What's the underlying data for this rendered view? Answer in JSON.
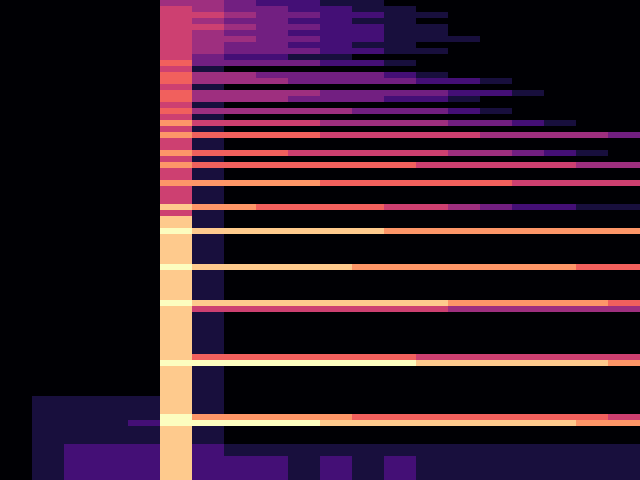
{
  "chart_data": {
    "type": "heatmap",
    "color": "magma",
    "tick_labels": false,
    "cells": [
      [
        0,
        0,
        0,
        0,
        0,
        4,
        4,
        3,
        2,
        2,
        1,
        1,
        0,
        0,
        0,
        0,
        0,
        0,
        0,
        0
      ],
      [
        0,
        0,
        0,
        0,
        0,
        5,
        4,
        3,
        3,
        2,
        2,
        1,
        1,
        0,
        0,
        0,
        0,
        0,
        0,
        0
      ],
      [
        0,
        0,
        0,
        0,
        0,
        5,
        5,
        4,
        3,
        3,
        2,
        2,
        1,
        1,
        0,
        0,
        0,
        0,
        0,
        0
      ],
      [
        0,
        0,
        0,
        0,
        0,
        5,
        4,
        3,
        3,
        2,
        2,
        1,
        1,
        0,
        0,
        0,
        0,
        0,
        0,
        0
      ],
      [
        0,
        0,
        0,
        0,
        0,
        5,
        5,
        4,
        3,
        3,
        2,
        2,
        1,
        1,
        0,
        0,
        0,
        0,
        0,
        0
      ],
      [
        0,
        0,
        0,
        0,
        0,
        5,
        4,
        3,
        3,
        2,
        2,
        2,
        1,
        1,
        0,
        0,
        0,
        0,
        0,
        0
      ],
      [
        0,
        0,
        0,
        0,
        0,
        5,
        4,
        4,
        3,
        3,
        2,
        2,
        1,
        1,
        1,
        0,
        0,
        0,
        0,
        0
      ],
      [
        0,
        0,
        0,
        0,
        0,
        5,
        4,
        3,
        3,
        2,
        2,
        1,
        1,
        0,
        0,
        0,
        0,
        0,
        0,
        0
      ],
      [
        0,
        0,
        0,
        0,
        0,
        5,
        4,
        3,
        3,
        3,
        2,
        2,
        1,
        1,
        0,
        0,
        0,
        0,
        0,
        0
      ],
      [
        0,
        0,
        0,
        0,
        0,
        5,
        3,
        2,
        2,
        1,
        1,
        0,
        0,
        0,
        0,
        0,
        0,
        0,
        0,
        0
      ],
      [
        0,
        0,
        0,
        0,
        0,
        6,
        3,
        3,
        3,
        3,
        2,
        2,
        1,
        0,
        0,
        0,
        0,
        0,
        0,
        0
      ],
      [
        0,
        0,
        0,
        0,
        0,
        5,
        1,
        0,
        0,
        0,
        0,
        0,
        0,
        0,
        0,
        0,
        0,
        0,
        0,
        0
      ],
      [
        0,
        0,
        0,
        0,
        0,
        6,
        4,
        4,
        3,
        3,
        3,
        3,
        2,
        1,
        0,
        0,
        0,
        0,
        0,
        0
      ],
      [
        0,
        0,
        0,
        0,
        0,
        6,
        4,
        4,
        4,
        3,
        3,
        3,
        3,
        2,
        2,
        1,
        0,
        0,
        0,
        0
      ],
      [
        0,
        0,
        0,
        0,
        0,
        5,
        1,
        0,
        0,
        0,
        0,
        0,
        0,
        0,
        0,
        0,
        0,
        0,
        0,
        0
      ],
      [
        0,
        0,
        0,
        0,
        0,
        6,
        4,
        4,
        4,
        4,
        3,
        3,
        3,
        3,
        2,
        2,
        1,
        0,
        0,
        0
      ],
      [
        0,
        0,
        0,
        0,
        0,
        6,
        4,
        4,
        4,
        3,
        3,
        3,
        2,
        2,
        1,
        0,
        0,
        0,
        0,
        0
      ],
      [
        0,
        0,
        0,
        0,
        0,
        5,
        1,
        0,
        0,
        0,
        0,
        0,
        0,
        0,
        0,
        0,
        0,
        0,
        0,
        0
      ],
      [
        0,
        0,
        0,
        0,
        0,
        6,
        4,
        4,
        4,
        4,
        4,
        3,
        3,
        3,
        2,
        1,
        0,
        0,
        0,
        0
      ],
      [
        0,
        0,
        0,
        0,
        0,
        5,
        1,
        0,
        0,
        0,
        0,
        0,
        0,
        0,
        0,
        0,
        0,
        0,
        0,
        0
      ],
      [
        0,
        0,
        0,
        0,
        0,
        7,
        5,
        5,
        5,
        5,
        4,
        4,
        4,
        4,
        3,
        3,
        2,
        1,
        0,
        0
      ],
      [
        0,
        0,
        0,
        0,
        0,
        5,
        1,
        0,
        0,
        0,
        0,
        0,
        0,
        0,
        0,
        0,
        0,
        0,
        0,
        0
      ],
      [
        0,
        0,
        0,
        0,
        0,
        7,
        6,
        6,
        6,
        6,
        5,
        5,
        5,
        5,
        5,
        4,
        4,
        4,
        4,
        3
      ],
      [
        0,
        0,
        0,
        0,
        0,
        5,
        1,
        0,
        0,
        0,
        0,
        0,
        0,
        0,
        0,
        0,
        0,
        0,
        0,
        0
      ],
      [
        0,
        0,
        0,
        0,
        0,
        5,
        1,
        0,
        0,
        0,
        0,
        0,
        0,
        0,
        0,
        0,
        0,
        0,
        0,
        0
      ],
      [
        0,
        0,
        0,
        0,
        0,
        7,
        6,
        6,
        6,
        5,
        5,
        5,
        5,
        5,
        4,
        4,
        3,
        2,
        1,
        0
      ],
      [
        0,
        0,
        0,
        0,
        0,
        5,
        1,
        0,
        0,
        0,
        0,
        0,
        0,
        0,
        0,
        0,
        0,
        0,
        0,
        0
      ],
      [
        0,
        0,
        0,
        0,
        0,
        7,
        6,
        6,
        6,
        6,
        6,
        6,
        6,
        5,
        5,
        5,
        5,
        5,
        4,
        4
      ],
      [
        0,
        0,
        0,
        0,
        0,
        5,
        1,
        0,
        0,
        0,
        0,
        0,
        0,
        0,
        0,
        0,
        0,
        0,
        0,
        0
      ],
      [
        0,
        0,
        0,
        0,
        0,
        5,
        1,
        0,
        0,
        0,
        0,
        0,
        0,
        0,
        0,
        0,
        0,
        0,
        0,
        0
      ],
      [
        0,
        0,
        0,
        0,
        0,
        7,
        7,
        7,
        7,
        7,
        6,
        6,
        6,
        6,
        6,
        6,
        5,
        5,
        5,
        5
      ],
      [
        0,
        0,
        0,
        0,
        0,
        5,
        1,
        0,
        0,
        0,
        0,
        0,
        0,
        0,
        0,
        0,
        0,
        0,
        0,
        0
      ],
      [
        0,
        0,
        0,
        0,
        0,
        5,
        1,
        0,
        0,
        0,
        0,
        0,
        0,
        0,
        0,
        0,
        0,
        0,
        0,
        0
      ],
      [
        0,
        0,
        0,
        0,
        0,
        5,
        1,
        0,
        0,
        0,
        0,
        0,
        0,
        0,
        0,
        0,
        0,
        0,
        0,
        0
      ],
      [
        0,
        0,
        0,
        0,
        0,
        8,
        7,
        7,
        6,
        6,
        6,
        6,
        5,
        5,
        4,
        3,
        2,
        2,
        1,
        1
      ],
      [
        0,
        0,
        0,
        0,
        0,
        5,
        1,
        0,
        0,
        0,
        0,
        0,
        0,
        0,
        0,
        0,
        0,
        0,
        0,
        0
      ],
      [
        0,
        0,
        0,
        0,
        0,
        8,
        1,
        0,
        0,
        0,
        0,
        0,
        0,
        0,
        0,
        0,
        0,
        0,
        0,
        0
      ],
      [
        0,
        0,
        0,
        0,
        0,
        8,
        1,
        0,
        0,
        0,
        0,
        0,
        0,
        0,
        0,
        0,
        0,
        0,
        0,
        0
      ],
      [
        0,
        0,
        0,
        0,
        0,
        9,
        8,
        8,
        8,
        8,
        8,
        8,
        7,
        7,
        7,
        7,
        7,
        7,
        7,
        7
      ],
      [
        0,
        0,
        0,
        0,
        0,
        8,
        1,
        0,
        0,
        0,
        0,
        0,
        0,
        0,
        0,
        0,
        0,
        0,
        0,
        0
      ],
      [
        0,
        0,
        0,
        0,
        0,
        8,
        1,
        0,
        0,
        0,
        0,
        0,
        0,
        0,
        0,
        0,
        0,
        0,
        0,
        0
      ],
      [
        0,
        0,
        0,
        0,
        0,
        8,
        1,
        0,
        0,
        0,
        0,
        0,
        0,
        0,
        0,
        0,
        0,
        0,
        0,
        0
      ],
      [
        0,
        0,
        0,
        0,
        0,
        8,
        1,
        0,
        0,
        0,
        0,
        0,
        0,
        0,
        0,
        0,
        0,
        0,
        0,
        0
      ],
      [
        0,
        0,
        0,
        0,
        0,
        8,
        1,
        0,
        0,
        0,
        0,
        0,
        0,
        0,
        0,
        0,
        0,
        0,
        0,
        0
      ],
      [
        0,
        0,
        0,
        0,
        0,
        9,
        8,
        8,
        8,
        8,
        8,
        7,
        7,
        7,
        7,
        7,
        7,
        7,
        6,
        6
      ],
      [
        0,
        0,
        0,
        0,
        0,
        8,
        1,
        0,
        0,
        0,
        0,
        0,
        0,
        0,
        0,
        0,
        0,
        0,
        0,
        0
      ],
      [
        0,
        0,
        0,
        0,
        0,
        8,
        1,
        0,
        0,
        0,
        0,
        0,
        0,
        0,
        0,
        0,
        0,
        0,
        0,
        0
      ],
      [
        0,
        0,
        0,
        0,
        0,
        8,
        1,
        0,
        0,
        0,
        0,
        0,
        0,
        0,
        0,
        0,
        0,
        0,
        0,
        0
      ],
      [
        0,
        0,
        0,
        0,
        0,
        8,
        1,
        0,
        0,
        0,
        0,
        0,
        0,
        0,
        0,
        0,
        0,
        0,
        0,
        0
      ],
      [
        0,
        0,
        0,
        0,
        0,
        8,
        1,
        0,
        0,
        0,
        0,
        0,
        0,
        0,
        0,
        0,
        0,
        0,
        0,
        0
      ],
      [
        0,
        0,
        0,
        0,
        0,
        9,
        8,
        8,
        8,
        8,
        8,
        8,
        8,
        8,
        7,
        7,
        7,
        7,
        7,
        6
      ],
      [
        0,
        0,
        0,
        0,
        0,
        8,
        5,
        5,
        5,
        5,
        5,
        5,
        5,
        5,
        4,
        4,
        4,
        4,
        4,
        4
      ],
      [
        0,
        0,
        0,
        0,
        0,
        8,
        1,
        0,
        0,
        0,
        0,
        0,
        0,
        0,
        0,
        0,
        0,
        0,
        0,
        0
      ],
      [
        0,
        0,
        0,
        0,
        0,
        8,
        1,
        0,
        0,
        0,
        0,
        0,
        0,
        0,
        0,
        0,
        0,
        0,
        0,
        0
      ],
      [
        0,
        0,
        0,
        0,
        0,
        8,
        1,
        0,
        0,
        0,
        0,
        0,
        0,
        0,
        0,
        0,
        0,
        0,
        0,
        0
      ],
      [
        0,
        0,
        0,
        0,
        0,
        8,
        1,
        0,
        0,
        0,
        0,
        0,
        0,
        0,
        0,
        0,
        0,
        0,
        0,
        0
      ],
      [
        0,
        0,
        0,
        0,
        0,
        8,
        1,
        0,
        0,
        0,
        0,
        0,
        0,
        0,
        0,
        0,
        0,
        0,
        0,
        0
      ],
      [
        0,
        0,
        0,
        0,
        0,
        8,
        1,
        0,
        0,
        0,
        0,
        0,
        0,
        0,
        0,
        0,
        0,
        0,
        0,
        0
      ],
      [
        0,
        0,
        0,
        0,
        0,
        8,
        1,
        0,
        0,
        0,
        0,
        0,
        0,
        0,
        0,
        0,
        0,
        0,
        0,
        0
      ],
      [
        0,
        0,
        0,
        0,
        0,
        8,
        6,
        6,
        6,
        6,
        6,
        6,
        6,
        5,
        5,
        5,
        5,
        5,
        5,
        5
      ],
      [
        0,
        0,
        0,
        0,
        0,
        9,
        9,
        9,
        9,
        9,
        9,
        9,
        9,
        8,
        8,
        8,
        8,
        8,
        8,
        7
      ],
      [
        0,
        0,
        0,
        0,
        0,
        8,
        1,
        0,
        0,
        0,
        0,
        0,
        0,
        0,
        0,
        0,
        0,
        0,
        0,
        0
      ],
      [
        0,
        0,
        0,
        0,
        0,
        8,
        1,
        0,
        0,
        0,
        0,
        0,
        0,
        0,
        0,
        0,
        0,
        0,
        0,
        0
      ],
      [
        0,
        0,
        0,
        0,
        0,
        8,
        1,
        0,
        0,
        0,
        0,
        0,
        0,
        0,
        0,
        0,
        0,
        0,
        0,
        0
      ],
      [
        0,
        0,
        0,
        0,
        0,
        8,
        1,
        0,
        0,
        0,
        0,
        0,
        0,
        0,
        0,
        0,
        0,
        0,
        0,
        0
      ],
      [
        0,
        0,
        0,
        0,
        0,
        8,
        1,
        0,
        0,
        0,
        0,
        0,
        0,
        0,
        0,
        0,
        0,
        0,
        0,
        0
      ],
      [
        0,
        1,
        1,
        1,
        1,
        8,
        1,
        0,
        0,
        0,
        0,
        0,
        0,
        0,
        0,
        0,
        0,
        0,
        0,
        0
      ],
      [
        0,
        1,
        1,
        1,
        1,
        8,
        1,
        0,
        0,
        0,
        0,
        0,
        0,
        0,
        0,
        0,
        0,
        0,
        0,
        0
      ],
      [
        0,
        1,
        1,
        1,
        1,
        8,
        1,
        0,
        0,
        0,
        0,
        0,
        0,
        0,
        0,
        0,
        0,
        0,
        0,
        0
      ],
      [
        0,
        1,
        1,
        1,
        1,
        9,
        7,
        7,
        7,
        7,
        7,
        6,
        6,
        6,
        6,
        6,
        6,
        6,
        6,
        5
      ],
      [
        0,
        1,
        1,
        1,
        2,
        9,
        9,
        9,
        9,
        9,
        8,
        8,
        8,
        8,
        8,
        8,
        8,
        8,
        7,
        7
      ],
      [
        0,
        1,
        1,
        1,
        1,
        8,
        1,
        0,
        0,
        0,
        0,
        0,
        0,
        0,
        0,
        0,
        0,
        0,
        0,
        0
      ],
      [
        0,
        1,
        1,
        1,
        1,
        8,
        1,
        0,
        0,
        0,
        0,
        0,
        0,
        0,
        0,
        0,
        0,
        0,
        0,
        0
      ],
      [
        0,
        1,
        1,
        1,
        1,
        8,
        1,
        0,
        0,
        0,
        0,
        0,
        0,
        0,
        0,
        0,
        0,
        0,
        0,
        0
      ],
      [
        0,
        1,
        2,
        2,
        2,
        8,
        2,
        1,
        1,
        1,
        1,
        1,
        1,
        1,
        1,
        1,
        1,
        1,
        1,
        1
      ],
      [
        0,
        1,
        2,
        2,
        2,
        8,
        2,
        1,
        1,
        1,
        1,
        1,
        1,
        1,
        1,
        1,
        1,
        1,
        1,
        1
      ],
      [
        0,
        1,
        2,
        2,
        2,
        8,
        2,
        2,
        2,
        1,
        2,
        1,
        2,
        1,
        1,
        1,
        1,
        1,
        1,
        1
      ],
      [
        0,
        1,
        2,
        2,
        2,
        8,
        2,
        2,
        2,
        1,
        2,
        1,
        2,
        1,
        1,
        1,
        1,
        1,
        1,
        1
      ],
      [
        0,
        1,
        2,
        2,
        2,
        8,
        2,
        2,
        2,
        1,
        2,
        1,
        2,
        1,
        1,
        1,
        1,
        1,
        1,
        1
      ],
      [
        0,
        1,
        2,
        2,
        2,
        8,
        2,
        2,
        2,
        1,
        2,
        1,
        2,
        1,
        1,
        1,
        1,
        1,
        1,
        1
      ]
    ]
  }
}
